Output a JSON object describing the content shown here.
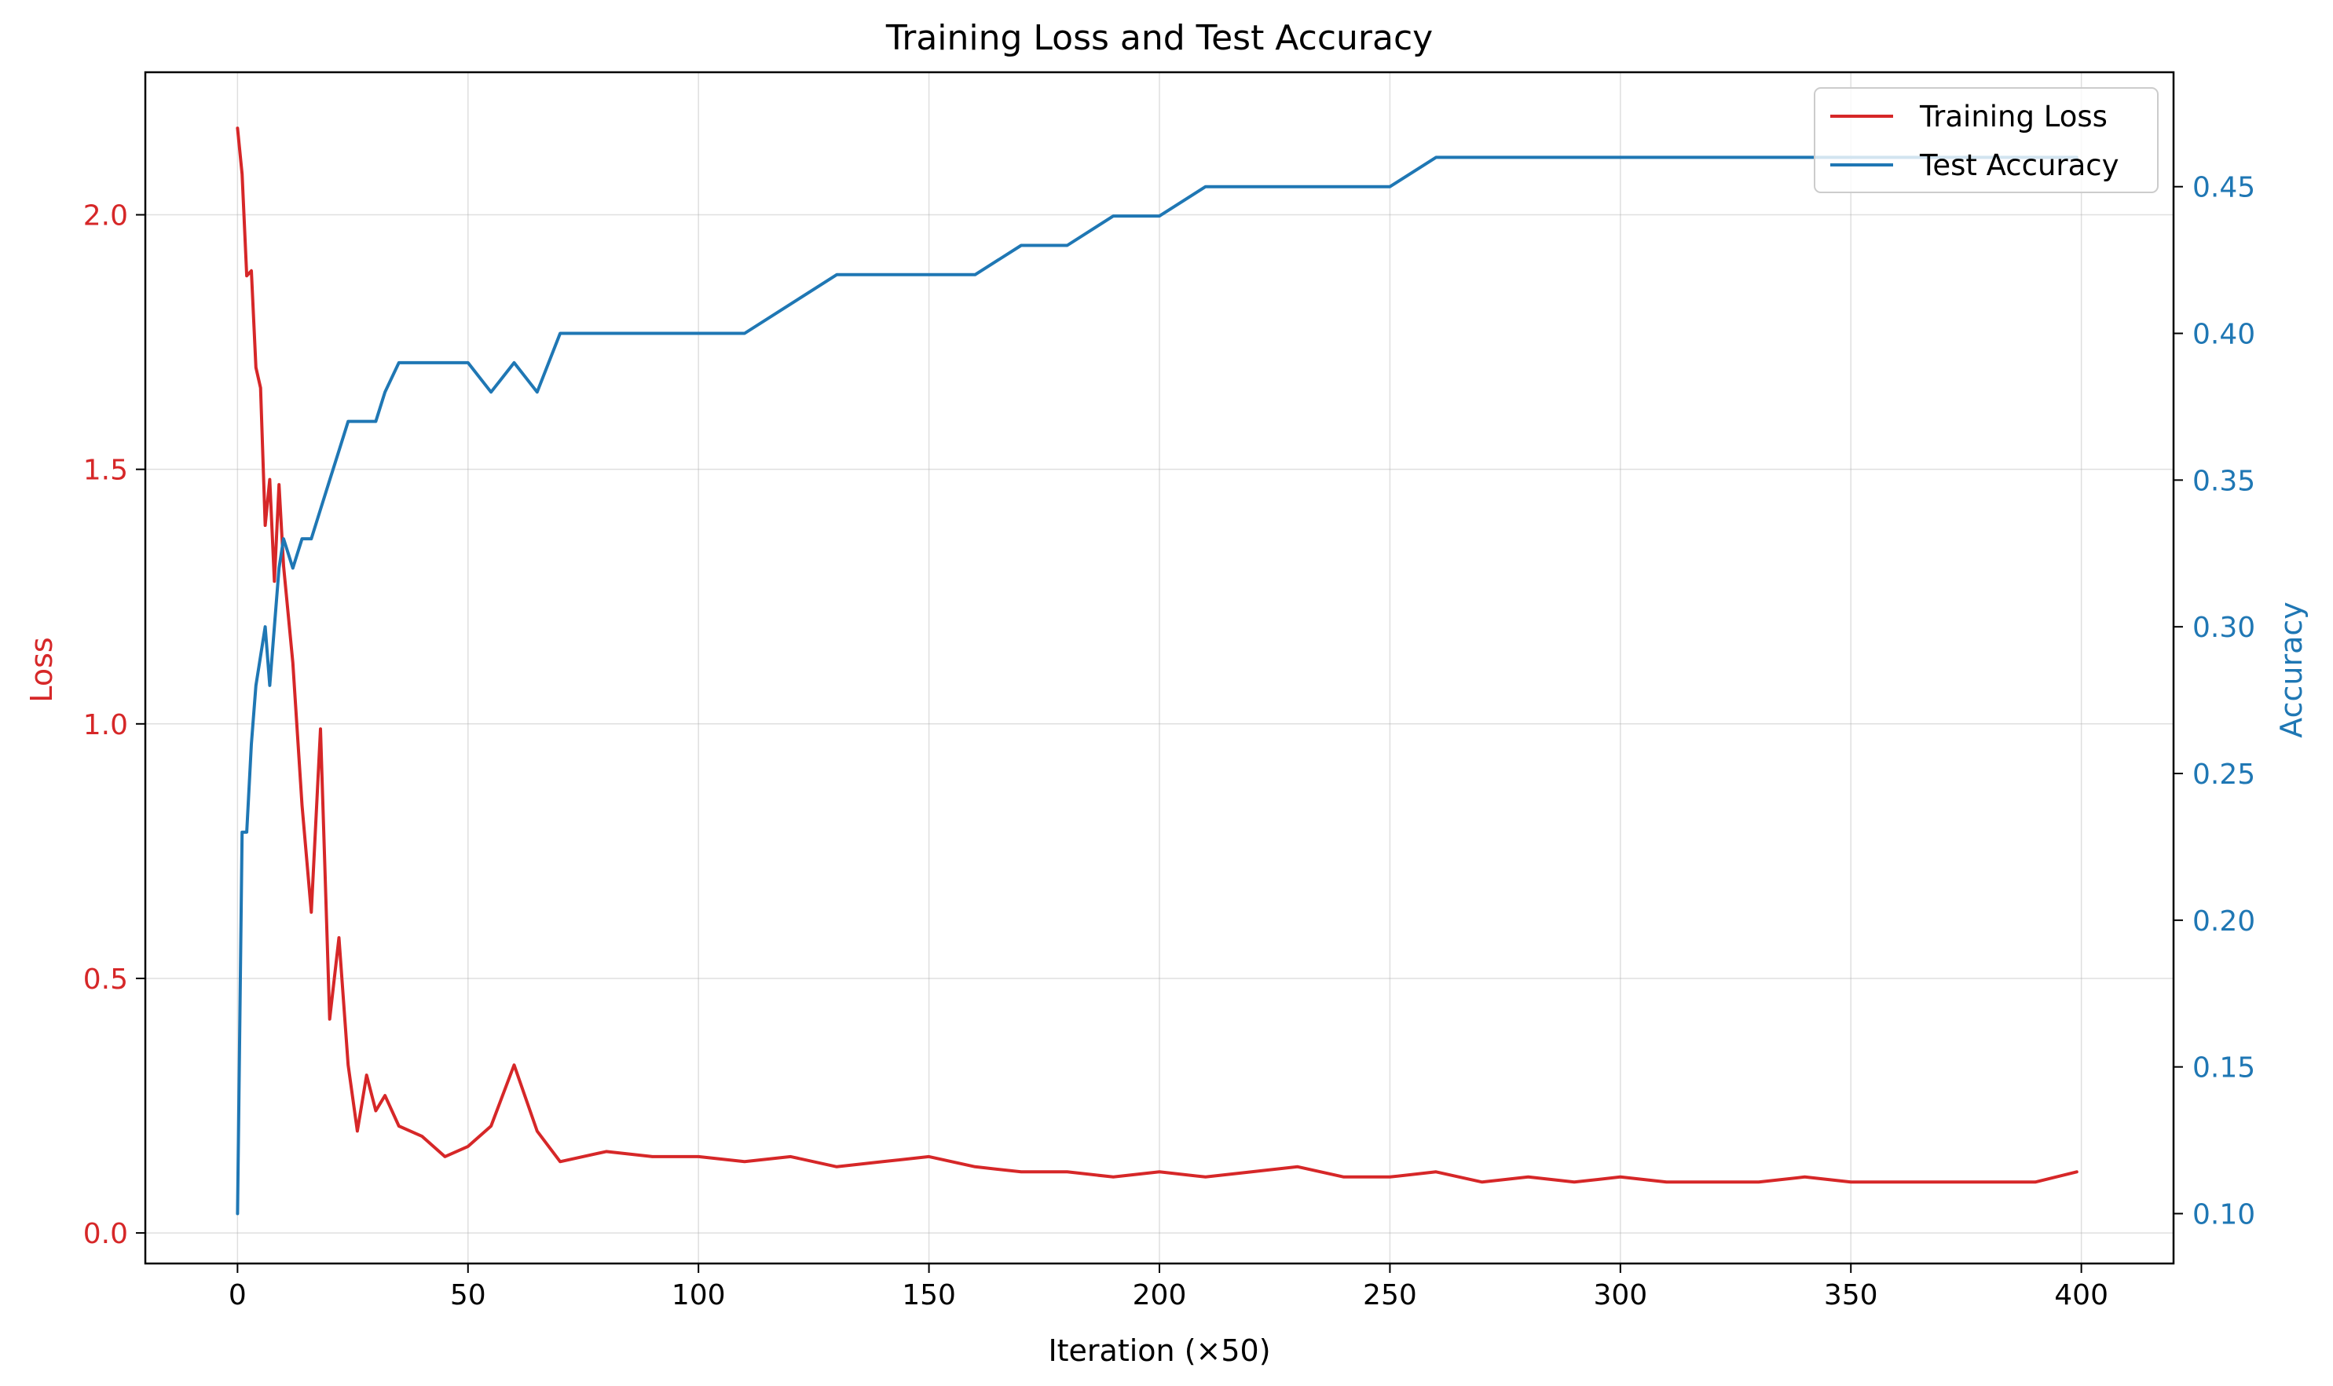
{
  "chart_data": {
    "type": "line",
    "title": "Training Loss and Test Accuracy",
    "xlabel": "Iteration (×50)",
    "ylabel_left": "Loss",
    "ylabel_right": "Accuracy",
    "xlim": [
      -20,
      420
    ],
    "ylim_left": [
      -0.06,
      2.28
    ],
    "ylim_right": [
      0.083,
      0.489
    ],
    "x_ticks": [
      0,
      50,
      100,
      150,
      200,
      250,
      300,
      350,
      400
    ],
    "y_ticks_left": [
      0.0,
      0.5,
      1.0,
      1.5,
      2.0
    ],
    "y_ticks_right": [
      0.1,
      0.15,
      0.2,
      0.25,
      0.3,
      0.35,
      0.4,
      0.45
    ],
    "grid": true,
    "legend_position": "top-right",
    "colors": {
      "loss": "#d62728",
      "accuracy": "#1f77b4"
    },
    "series": [
      {
        "name": "Training Loss",
        "axis": "left",
        "x": [
          0,
          1,
          2,
          3,
          4,
          5,
          6,
          7,
          8,
          9,
          10,
          12,
          14,
          16,
          18,
          20,
          22,
          24,
          26,
          28,
          30,
          32,
          35,
          40,
          45,
          50,
          55,
          60,
          65,
          70,
          80,
          90,
          100,
          110,
          120,
          130,
          140,
          150,
          160,
          170,
          180,
          190,
          200,
          210,
          220,
          230,
          240,
          250,
          260,
          270,
          280,
          290,
          300,
          310,
          320,
          330,
          340,
          350,
          360,
          370,
          380,
          390,
          399
        ],
        "values": [
          2.17,
          2.08,
          1.88,
          1.89,
          1.7,
          1.66,
          1.39,
          1.48,
          1.28,
          1.47,
          1.31,
          1.12,
          0.84,
          0.63,
          0.99,
          0.42,
          0.58,
          0.33,
          0.2,
          0.31,
          0.24,
          0.27,
          0.21,
          0.19,
          0.15,
          0.17,
          0.21,
          0.33,
          0.2,
          0.14,
          0.16,
          0.15,
          0.15,
          0.14,
          0.15,
          0.13,
          0.14,
          0.15,
          0.13,
          0.12,
          0.12,
          0.11,
          0.12,
          0.11,
          0.12,
          0.13,
          0.11,
          0.11,
          0.12,
          0.1,
          0.11,
          0.1,
          0.11,
          0.1,
          0.1,
          0.1,
          0.11,
          0.1,
          0.1,
          0.1,
          0.1,
          0.1,
          0.12
        ]
      },
      {
        "name": "Test Accuracy",
        "axis": "right",
        "x": [
          0,
          1,
          2,
          3,
          4,
          5,
          6,
          7,
          8,
          9,
          10,
          12,
          14,
          16,
          18,
          20,
          22,
          24,
          26,
          28,
          30,
          32,
          35,
          40,
          45,
          50,
          55,
          60,
          65,
          70,
          80,
          90,
          100,
          110,
          120,
          130,
          140,
          150,
          160,
          170,
          180,
          190,
          200,
          210,
          220,
          230,
          240,
          250,
          260,
          270,
          280,
          290,
          300,
          310,
          320,
          330,
          340,
          350,
          360,
          370,
          380,
          390,
          399
        ],
        "values": [
          0.1,
          0.23,
          0.23,
          0.26,
          0.28,
          0.29,
          0.3,
          0.28,
          0.3,
          0.32,
          0.33,
          0.32,
          0.33,
          0.33,
          0.34,
          0.35,
          0.36,
          0.37,
          0.37,
          0.37,
          0.37,
          0.38,
          0.39,
          0.39,
          0.39,
          0.39,
          0.38,
          0.39,
          0.38,
          0.4,
          0.4,
          0.4,
          0.4,
          0.4,
          0.41,
          0.42,
          0.42,
          0.42,
          0.42,
          0.43,
          0.43,
          0.44,
          0.44,
          0.45,
          0.45,
          0.45,
          0.45,
          0.45,
          0.46,
          0.46,
          0.46,
          0.46,
          0.46,
          0.46,
          0.46,
          0.46,
          0.46,
          0.46,
          0.46,
          0.46,
          0.46,
          0.46,
          0.46
        ]
      }
    ]
  }
}
